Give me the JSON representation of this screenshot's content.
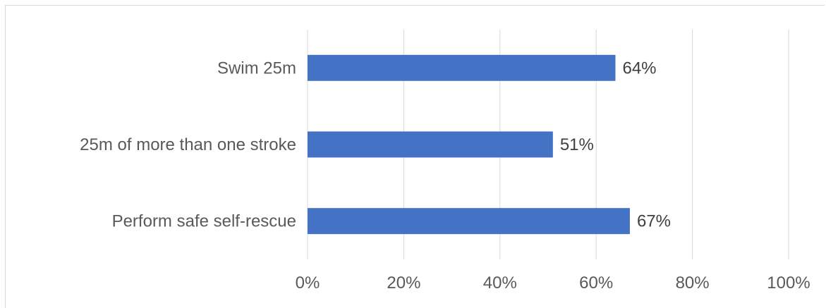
{
  "chart_data": {
    "type": "bar",
    "orientation": "horizontal",
    "title": "",
    "xlabel": "",
    "ylabel": "",
    "categories": [
      "Swim 25m",
      "25m of more than one stroke",
      "Perform safe self-rescue"
    ],
    "values": [
      64,
      51,
      67
    ],
    "data_labels": [
      "64%",
      "51%",
      "67%"
    ],
    "xlim": [
      0,
      100
    ],
    "x_ticks": [
      0,
      20,
      40,
      60,
      80,
      100
    ],
    "x_tick_labels": [
      "0%",
      "20%",
      "40%",
      "60%",
      "80%",
      "100%"
    ],
    "grid": "vertical",
    "legend": "none",
    "bar_color": "#4472c4",
    "grid_color": "#d9d9d9"
  }
}
